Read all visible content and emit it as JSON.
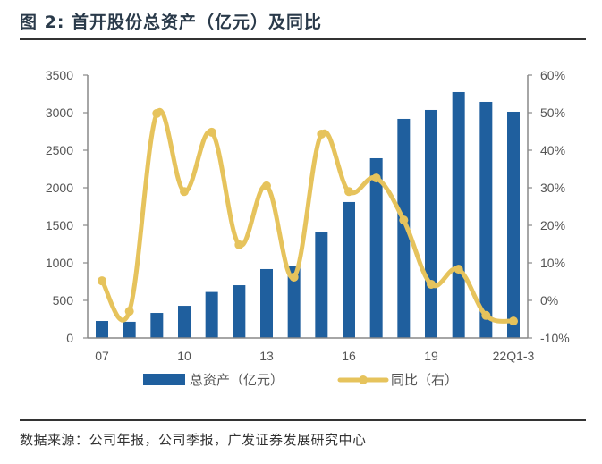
{
  "title": "图 2: 首开股份总资产（亿元）及同比",
  "source": "数据来源：公司年报，公司季报，广发证券发展研究中心",
  "colors": {
    "bar": "#1f5f9e",
    "line": "#e6c35c",
    "axis": "#888888"
  },
  "chart_data": {
    "type": "bar+line",
    "title": "首开股份总资产（亿元）及同比",
    "categories": [
      "07",
      "08",
      "09",
      "10",
      "11",
      "12",
      "13",
      "14",
      "15",
      "16",
      "17",
      "18",
      "19",
      "20",
      "21",
      "22Q1-3"
    ],
    "x_tick_labels": [
      "07",
      "10",
      "13",
      "16",
      "19",
      "22Q1-3"
    ],
    "series": [
      {
        "name": "总资产（亿元）",
        "type": "bar",
        "axis": "left",
        "values": [
          226,
          215,
          333,
          428,
          612,
          702,
          917,
          964,
          1405,
          1810,
          2393,
          2917,
          3036,
          3274,
          3143,
          3012
        ]
      },
      {
        "name": "同比（右）",
        "type": "line",
        "axis": "right",
        "values": [
          5.2,
          -2.9,
          49.8,
          29.0,
          44.8,
          14.8,
          30.5,
          6.2,
          44.3,
          29.0,
          32.6,
          21.4,
          4.3,
          8.3,
          -4.0,
          -5.5
        ]
      }
    ],
    "y_left": {
      "min": 0,
      "max": 3500,
      "ticks": [
        "0",
        "500",
        "1000",
        "1500",
        "2000",
        "2500",
        "3000",
        "3500"
      ]
    },
    "y_right": {
      "min": -10,
      "max": 60,
      "ticks": [
        "-10%",
        "0%",
        "10%",
        "20%",
        "30%",
        "40%",
        "50%",
        "60%"
      ]
    },
    "legend": {
      "position": "bottom",
      "items": [
        "总资产（亿元）",
        "同比（右）"
      ]
    },
    "grid": false
  }
}
